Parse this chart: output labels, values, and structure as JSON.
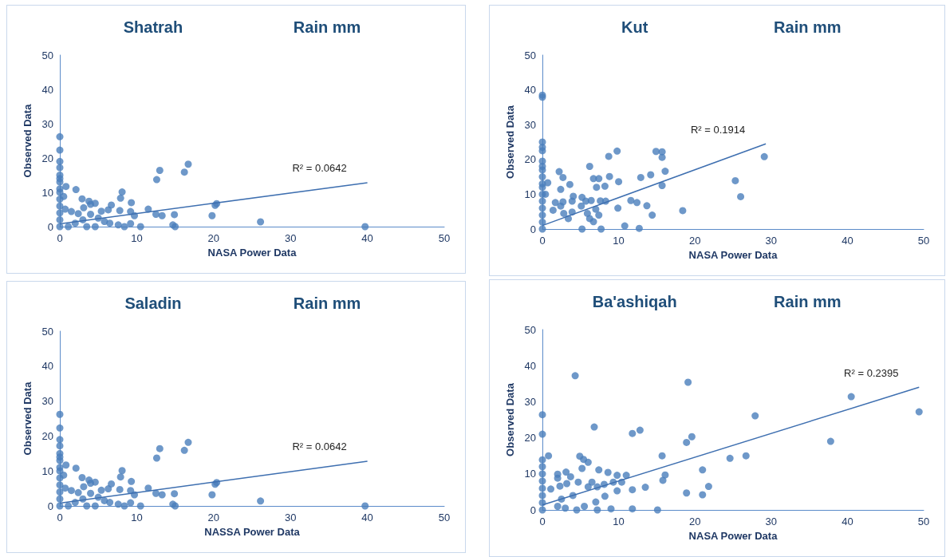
{
  "chart_data": [
    {
      "type": "scatter",
      "title": "Shatrah",
      "subtitle": "Rain mm",
      "xlabel": "NASA Power Data",
      "ylabel": "Observed Data",
      "xlim": [
        0,
        50
      ],
      "ylim": [
        0,
        50
      ],
      "xticks": [
        0,
        10,
        20,
        30,
        40,
        50
      ],
      "yticks": [
        0,
        10,
        20,
        30,
        40,
        50
      ],
      "grid": false,
      "series": [
        {
          "marker": "circle",
          "color": "#4a7ebb",
          "x": [
            0,
            0,
            0,
            0,
            0,
            0,
            0,
            0,
            0,
            0,
            0,
            0,
            0,
            0,
            0.8,
            2.1,
            0.5,
            2.9,
            3.8,
            4.6,
            4,
            3.1,
            0.7,
            1.5,
            2.4,
            4,
            5.4,
            6.3,
            6.7,
            7.8,
            7.9,
            8.1,
            9.3,
            9.2,
            9.7,
            5.8,
            7.6,
            8.4,
            9.2,
            10.5,
            11.5,
            12.5,
            12.6,
            13,
            13.3,
            14.9,
            14.7,
            15,
            16.2,
            16.7,
            19.8,
            20.2,
            20.4,
            26.1,
            39.7,
            1.1,
            3.5,
            4.6,
            2,
            3,
            5,
            6.5
          ],
          "values": [
            26.2,
            22.3,
            19,
            17.2,
            15,
            14,
            13,
            11,
            10,
            8,
            6,
            4,
            2,
            0,
            11.7,
            10.8,
            8.8,
            8.1,
            7.4,
            6.8,
            6.5,
            5.5,
            5.1,
            4.4,
            3.8,
            3.6,
            4.5,
            4.9,
            6.3,
            4.7,
            8.3,
            10.1,
            7,
            4.4,
            3.2,
            1.5,
            0.5,
            0,
            0.9,
            0,
            5.1,
            3.6,
            13.7,
            16.4,
            3.2,
            3.5,
            0.5,
            0,
            15.9,
            18.2,
            3.2,
            6.2,
            6.7,
            1.4,
            0,
            0,
            0,
            0,
            1,
            2,
            2.5,
            1
          ]
        },
        {
          "type": "line",
          "marker": "none",
          "color": "#3e6fb0",
          "x": [
            0,
            40
          ],
          "values": [
            0.8,
            12.8
          ]
        }
      ],
      "annotations": [
        "R² = 0.0642"
      ]
    },
    {
      "type": "scatter",
      "title": "Kut",
      "subtitle": "Rain mm",
      "xlabel": "NASA Power Data",
      "ylabel": "Observed Data",
      "xlim": [
        0,
        50
      ],
      "ylim": [
        0,
        50
      ],
      "xticks": [
        0,
        10,
        20,
        30,
        40,
        50
      ],
      "yticks": [
        0,
        10,
        20,
        30,
        40,
        50
      ],
      "grid": false,
      "series": [
        {
          "marker": "circle",
          "color": "#4a7ebb",
          "x": [
            0,
            0,
            0,
            0,
            0,
            0,
            0,
            0,
            0,
            0,
            0,
            0,
            0,
            0,
            0,
            0,
            0,
            0.7,
            0.4,
            2.2,
            2.7,
            2.4,
            3.6,
            4.05,
            3.9,
            1.7,
            2.7,
            2.4,
            1.4,
            2.8,
            3.9,
            3.4,
            5.2,
            5.1,
            5.7,
            6.4,
            5.9,
            6.2,
            6.7,
            7,
            7.4,
            6.2,
            6.7,
            7.4,
            7.1,
            7.6,
            8.3,
            8.2,
            8.7,
            8.8,
            9.8,
            10,
            9.9,
            10.8,
            7.7,
            5.2,
            12.7,
            11.6,
            12.4,
            12.9,
            13.7,
            14.2,
            14.4,
            14.9,
            15.7,
            15.7,
            15.7,
            16.1,
            18.4,
            25.3,
            26,
            29.1
          ],
          "values": [
            38.5,
            37.9,
            25,
            23.5,
            22.5,
            19.5,
            18,
            17,
            15,
            13,
            12,
            10,
            8,
            6,
            4,
            2,
            0,
            13.3,
            10,
            16.5,
            14.8,
            11.4,
            12.8,
            9.4,
            8,
            7.6,
            7.8,
            6.6,
            5.4,
            4.5,
            4.9,
            3,
            9.1,
            6.6,
            8,
            8.2,
            4.5,
            3,
            2.1,
            5.7,
            4,
            18,
            14.5,
            14.5,
            12,
            8.1,
            8,
            12.3,
            20.9,
            15.1,
            22.4,
            13.6,
            6,
            0.9,
            0,
            0,
            0.2,
            8.2,
            7.6,
            14.8,
            6.7,
            15.6,
            4,
            22.3,
            22.2,
            20.6,
            12.5,
            16.6,
            5.3,
            13.9,
            9.3,
            20.8
          ]
        },
        {
          "type": "line",
          "marker": "none",
          "color": "#3e6fb0",
          "x": [
            0,
            29.3
          ],
          "values": [
            1,
            24.5
          ]
        }
      ],
      "annotations": [
        "R² = 0.1914"
      ]
    },
    {
      "type": "scatter",
      "title": "Saladin",
      "subtitle": "Rain mm",
      "xlabel": "NASSA Power Data",
      "ylabel": "Observed Data",
      "xlim": [
        0,
        50
      ],
      "ylim": [
        0,
        50
      ],
      "xticks": [
        0,
        10,
        20,
        30,
        40,
        50
      ],
      "yticks": [
        0,
        10,
        20,
        30,
        40,
        50
      ],
      "grid": false,
      "series": [
        {
          "marker": "circle",
          "color": "#4a7ebb",
          "x": [
            0,
            0,
            0,
            0,
            0,
            0,
            0,
            0,
            0,
            0,
            0,
            0,
            0,
            0,
            0.8,
            2.1,
            0.5,
            2.9,
            3.8,
            4.6,
            4,
            3.1,
            0.7,
            1.5,
            2.4,
            4,
            5.4,
            6.3,
            6.7,
            7.8,
            7.9,
            8.1,
            9.3,
            9.2,
            9.7,
            5.8,
            7.6,
            8.4,
            9.2,
            10.5,
            11.5,
            12.5,
            12.6,
            13,
            13.3,
            14.9,
            14.7,
            15,
            16.2,
            16.7,
            19.8,
            20.2,
            20.4,
            26.1,
            39.7,
            1.1,
            3.5,
            4.6,
            2,
            3,
            5,
            6.5
          ],
          "values": [
            26.2,
            22.3,
            19,
            17.2,
            15,
            14,
            13,
            11,
            10,
            8,
            6,
            4,
            2,
            0,
            11.7,
            10.8,
            8.8,
            8.1,
            7.4,
            6.8,
            6.5,
            5.5,
            5.1,
            4.4,
            3.8,
            3.6,
            4.5,
            4.9,
            6.3,
            4.7,
            8.3,
            10.1,
            7,
            4.4,
            3.2,
            1.5,
            0.5,
            0,
            0.9,
            0,
            5.1,
            3.6,
            13.7,
            16.4,
            3.2,
            3.5,
            0.5,
            0,
            15.9,
            18.2,
            3.2,
            6.2,
            6.7,
            1.4,
            0,
            0,
            0,
            0,
            1,
            2,
            2.5,
            1
          ]
        },
        {
          "type": "line",
          "marker": "none",
          "color": "#3e6fb0",
          "x": [
            0,
            40
          ],
          "values": [
            0.8,
            12.8
          ]
        }
      ],
      "annotations": [
        "R² = 0.0642"
      ]
    },
    {
      "type": "scatter",
      "title": "Ba'ashiqah",
      "subtitle": "Rain mm",
      "xlabel": "NASA Power Data",
      "ylabel": "Observed Data",
      "xlim": [
        0,
        50
      ],
      "ylim": [
        0,
        50
      ],
      "xticks": [
        0,
        10,
        20,
        30,
        40,
        50
      ],
      "yticks": [
        0,
        10,
        20,
        30,
        40,
        50
      ],
      "grid": false,
      "series": [
        {
          "marker": "circle",
          "color": "#4a7ebb",
          "x": [
            0,
            0,
            0,
            0,
            0,
            0,
            0,
            0,
            0,
            0,
            0.8,
            4.3,
            6.8,
            4.9,
            5.4,
            6,
            5.2,
            7.4,
            8.6,
            9.8,
            11,
            3.1,
            2,
            2,
            3.7,
            6.5,
            9.3,
            10.4,
            8.1,
            7.2,
            6,
            4.7,
            3.2,
            1.1,
            2.3,
            9.8,
            11.8,
            13.5,
            8.2,
            7,
            9,
            7.2,
            11.8,
            15.1,
            12.8,
            11.8,
            15.7,
            15.8,
            16.1,
            19.1,
            18.9,
            19.6,
            18.9,
            21,
            21,
            21.8,
            24.6,
            26.7,
            27.9,
            37.8,
            40.5,
            49.4,
            2,
            3,
            4.5,
            5.5,
            2.5,
            4
          ],
          "values": [
            26.4,
            21,
            13.9,
            12,
            10,
            8,
            6,
            4,
            2,
            0,
            15,
            37.2,
            23,
            14.9,
            14,
            13.2,
            11.5,
            11.1,
            10.4,
            9.6,
            9.6,
            10.5,
            9.9,
            8.8,
            9.2,
            7.7,
            7.7,
            7.7,
            7.1,
            6.4,
            6.4,
            7.7,
            7.3,
            5.8,
            6.6,
            5.3,
            5.6,
            6.3,
            3.8,
            2.2,
            0.3,
            0,
            0.3,
            0,
            22.1,
            21.2,
            15,
            8.2,
            9.7,
            35.4,
            18.7,
            20.3,
            4.7,
            11.1,
            4.2,
            6.5,
            14.3,
            15,
            26.1,
            19,
            31.4,
            27.2,
            1,
            0.5,
            0,
            1,
            3,
            4
          ]
        },
        {
          "type": "line",
          "marker": "none",
          "color": "#3e6fb0",
          "x": [
            0,
            49.4
          ],
          "values": [
            1.4,
            34
          ]
        }
      ],
      "annotations": [
        "R² = 0.2395"
      ]
    }
  ]
}
